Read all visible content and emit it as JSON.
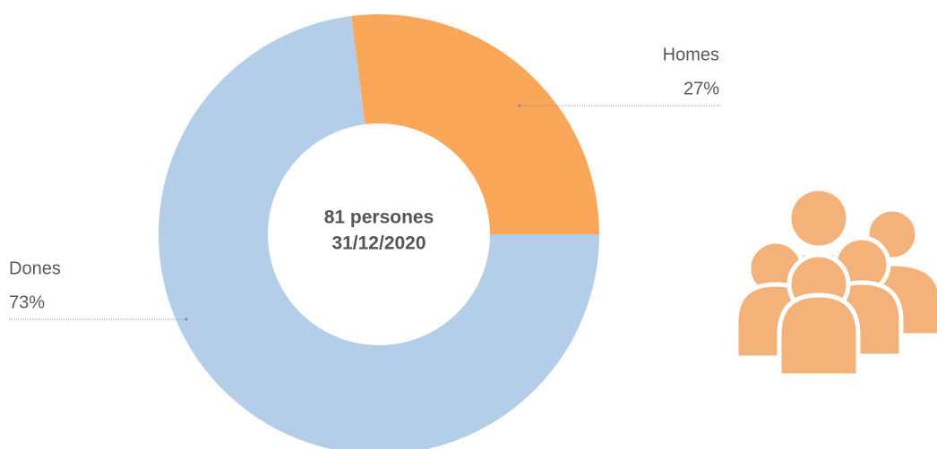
{
  "chart_data": {
    "type": "pie",
    "categories": [
      "Homes",
      "Dones"
    ],
    "values": [
      27,
      73
    ],
    "value_labels": [
      "27%",
      "73%"
    ],
    "colors": [
      "#fba75a",
      "#b4cde9"
    ],
    "center_text": [
      "81 persones",
      "31/12/2020"
    ]
  }
}
